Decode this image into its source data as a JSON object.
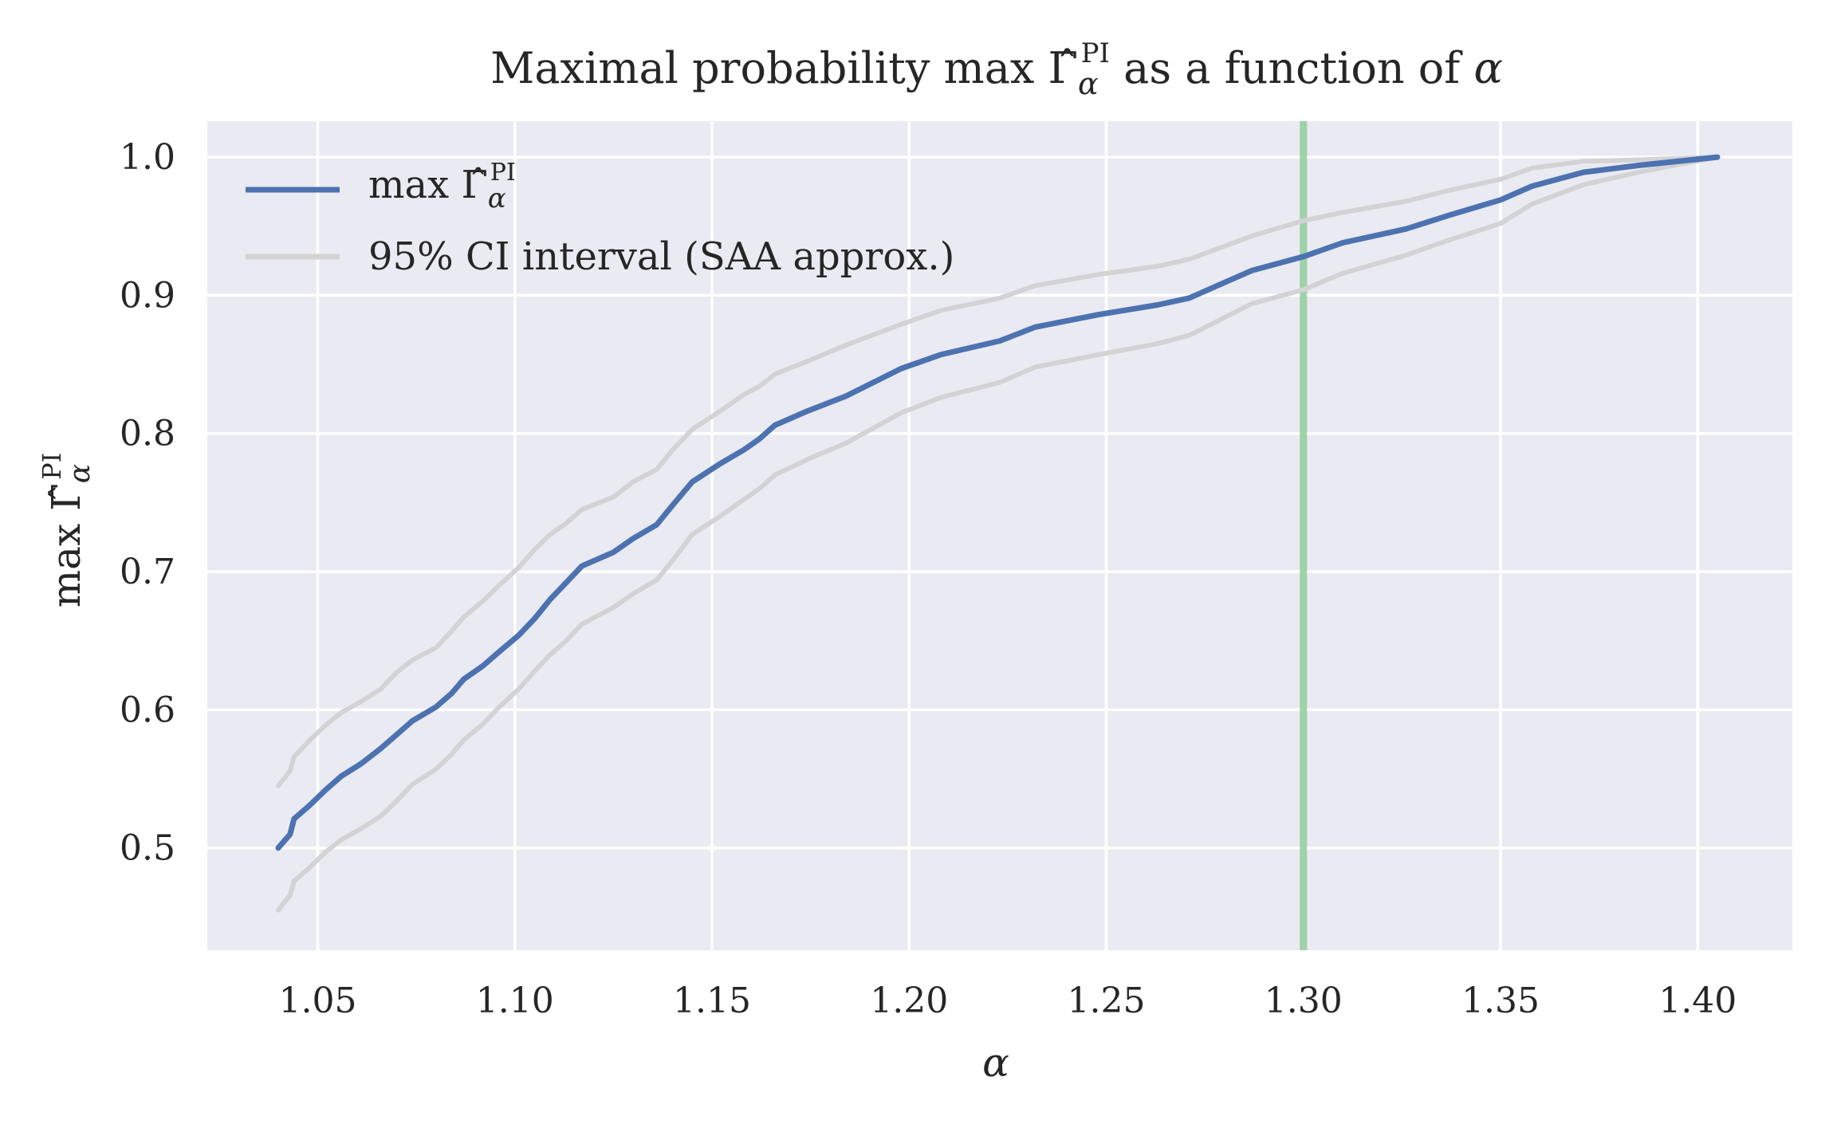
{
  "chart_data": {
    "type": "line",
    "title_parts": {
      "prefix": "Maximal probability max ",
      "symbol": "Γ̂",
      "sub": "α",
      "sup": "PI",
      "suffix": " as a function of ",
      "var": "α"
    },
    "xlabel": "α",
    "ylabel_parts": {
      "prefix": "max ",
      "symbol": "Γ̂",
      "sub": "α",
      "sup": "PI"
    },
    "xlim": [
      1.022,
      1.424
    ],
    "ylim": [
      0.426,
      1.026
    ],
    "x_ticks": [
      1.05,
      1.1,
      1.15,
      1.2,
      1.25,
      1.3,
      1.35,
      1.4
    ],
    "x_tick_labels": [
      "1.05",
      "1.10",
      "1.15",
      "1.20",
      "1.25",
      "1.30",
      "1.35",
      "1.40"
    ],
    "y_ticks": [
      0.5,
      0.6,
      0.7,
      0.8,
      0.9,
      1.0
    ],
    "y_tick_labels": [
      "0.5",
      "0.6",
      "0.7",
      "0.8",
      "0.9",
      "1.0"
    ],
    "grid": true,
    "legend_position": "top-left",
    "vline": {
      "x": 1.3,
      "color": "#8fcb9a"
    },
    "x": [
      1.04,
      1.043,
      1.044,
      1.048,
      1.052,
      1.056,
      1.061,
      1.066,
      1.07,
      1.074,
      1.08,
      1.084,
      1.087,
      1.092,
      1.096,
      1.101,
      1.105,
      1.109,
      1.113,
      1.117,
      1.125,
      1.13,
      1.136,
      1.14,
      1.145,
      1.152,
      1.158,
      1.162,
      1.166,
      1.174,
      1.184,
      1.198,
      1.208,
      1.223,
      1.232,
      1.248,
      1.263,
      1.271,
      1.287,
      1.3,
      1.31,
      1.326,
      1.337,
      1.35,
      1.358,
      1.371,
      1.385,
      1.405
    ],
    "series": [
      {
        "name_parts": {
          "prefix": "max ",
          "symbol": "Γ̂",
          "sub": "α",
          "sup": "PI"
        },
        "color": "#4c72b0",
        "values": [
          0.5,
          0.51,
          0.521,
          0.531,
          0.542,
          0.552,
          0.561,
          0.572,
          0.582,
          0.592,
          0.602,
          0.612,
          0.622,
          0.632,
          0.642,
          0.654,
          0.666,
          0.68,
          0.692,
          0.704,
          0.714,
          0.724,
          0.734,
          0.748,
          0.765,
          0.778,
          0.788,
          0.796,
          0.806,
          0.816,
          0.827,
          0.847,
          0.857,
          0.867,
          0.877,
          0.886,
          0.893,
          0.898,
          0.918,
          0.928,
          0.938,
          0.948,
          0.958,
          0.969,
          0.979,
          0.989,
          0.994,
          1.0
        ]
      },
      {
        "name": "95% CI interval (SAA approx.)",
        "color": "#d3d3d6",
        "upper": [
          0.545,
          0.556,
          0.566,
          0.578,
          0.589,
          0.598,
          0.606,
          0.615,
          0.627,
          0.636,
          0.645,
          0.657,
          0.667,
          0.679,
          0.69,
          0.703,
          0.716,
          0.727,
          0.735,
          0.745,
          0.754,
          0.765,
          0.774,
          0.788,
          0.803,
          0.816,
          0.828,
          0.834,
          0.843,
          0.852,
          0.864,
          0.879,
          0.889,
          0.898,
          0.907,
          0.915,
          0.921,
          0.926,
          0.943,
          0.954,
          0.96,
          0.968,
          0.976,
          0.984,
          0.992,
          0.997,
          0.998,
          1.0
        ],
        "lower": [
          0.455,
          0.466,
          0.476,
          0.486,
          0.497,
          0.506,
          0.514,
          0.523,
          0.534,
          0.546,
          0.557,
          0.568,
          0.578,
          0.59,
          0.602,
          0.615,
          0.628,
          0.64,
          0.65,
          0.662,
          0.674,
          0.684,
          0.694,
          0.708,
          0.727,
          0.74,
          0.752,
          0.76,
          0.77,
          0.781,
          0.793,
          0.815,
          0.826,
          0.837,
          0.848,
          0.857,
          0.865,
          0.871,
          0.894,
          0.904,
          0.916,
          0.929,
          0.94,
          0.952,
          0.966,
          0.98,
          0.989,
          1.0
        ]
      }
    ]
  }
}
